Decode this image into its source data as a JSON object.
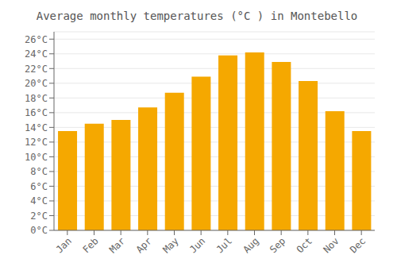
{
  "chart_data": {
    "type": "bar",
    "title": "Average monthly temperatures (°C ) in Montebello",
    "categories": [
      "Jan",
      "Feb",
      "Mar",
      "Apr",
      "May",
      "Jun",
      "Jul",
      "Aug",
      "Sep",
      "Oct",
      "Nov",
      "Dec"
    ],
    "values": [
      13.5,
      14.5,
      15.0,
      16.7,
      18.7,
      20.9,
      23.8,
      24.2,
      22.9,
      20.3,
      16.2,
      13.5
    ],
    "color": "#F5A800",
    "ylim": [
      0,
      27
    ],
    "yticks": [
      {
        "value": 0,
        "label": "0°C"
      },
      {
        "value": 2,
        "label": "2°C"
      },
      {
        "value": 4,
        "label": "4°C"
      },
      {
        "value": 6,
        "label": "6°C"
      },
      {
        "value": 8,
        "label": "8°C"
      },
      {
        "value": 10,
        "label": "10°C"
      },
      {
        "value": 12,
        "label": "12°C"
      },
      {
        "value": 14,
        "label": "14°C"
      },
      {
        "value": 16,
        "label": "16°C"
      },
      {
        "value": 18,
        "label": "18°C"
      },
      {
        "value": 20,
        "label": "20°C"
      },
      {
        "value": 22,
        "label": "22°C"
      },
      {
        "value": 24,
        "label": "24°C"
      },
      {
        "value": 26,
        "label": "26°C"
      }
    ],
    "grid": true
  }
}
